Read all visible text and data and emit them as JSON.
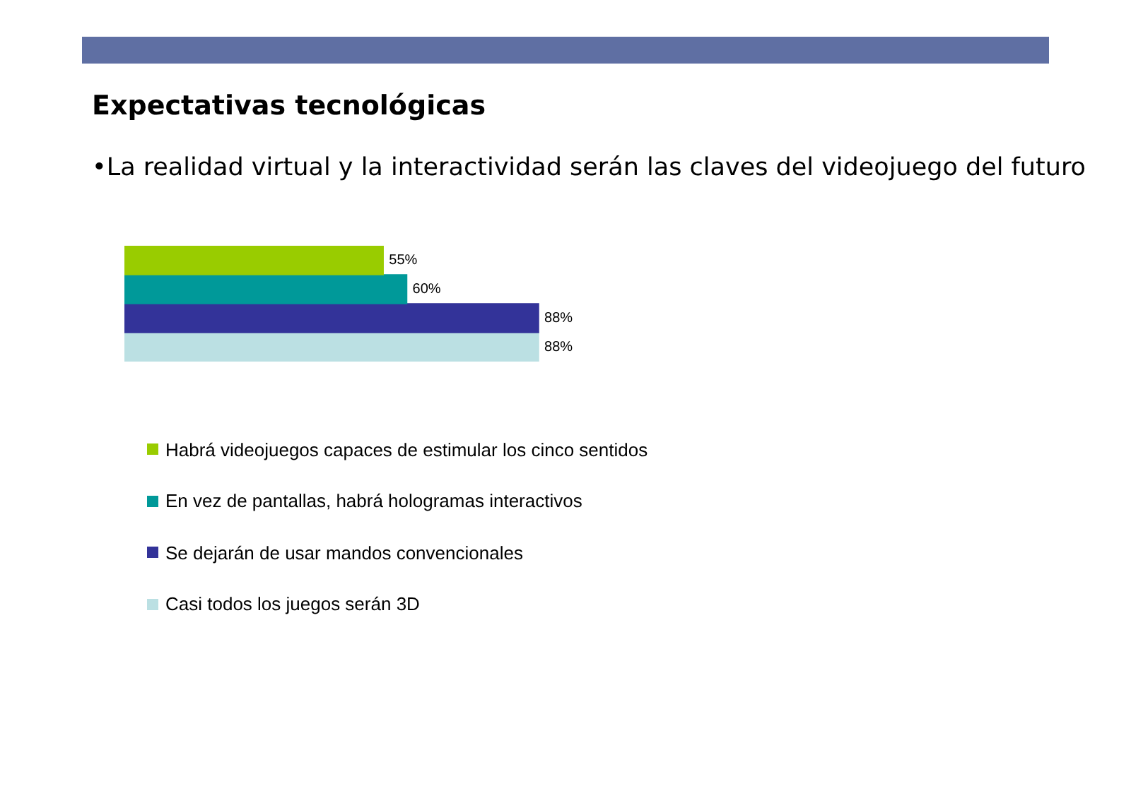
{
  "chart_data": {
    "type": "bar",
    "orientation": "horizontal",
    "title": "Expectativas tecnológicas",
    "subtitle": "•La realidad virtual y la interactividad serán las claves del videojuego del futuro",
    "categories": [
      null
    ],
    "legend": "bottom",
    "tick_labels": false,
    "series": [
      {
        "name": "Habrá videojuegos capaces de estimular los cinco sentidos",
        "color": "#99cc00",
        "values": [
          55
        ],
        "value_labels": [
          "55%"
        ]
      },
      {
        "name": "En vez de pantallas, habrá hologramas interactivos",
        "color": "#009999",
        "values": [
          60
        ],
        "value_labels": [
          "60%"
        ]
      },
      {
        "name": "Se dejarán de usar mandos convencionales",
        "color": "#333399",
        "values": [
          88
        ],
        "value_labels": [
          "88%"
        ]
      },
      {
        "name": "Casi todos los juegos serán 3D",
        "color": "#bbe0e3",
        "values": [
          88
        ],
        "value_labels": [
          "88%"
        ]
      }
    ]
  }
}
